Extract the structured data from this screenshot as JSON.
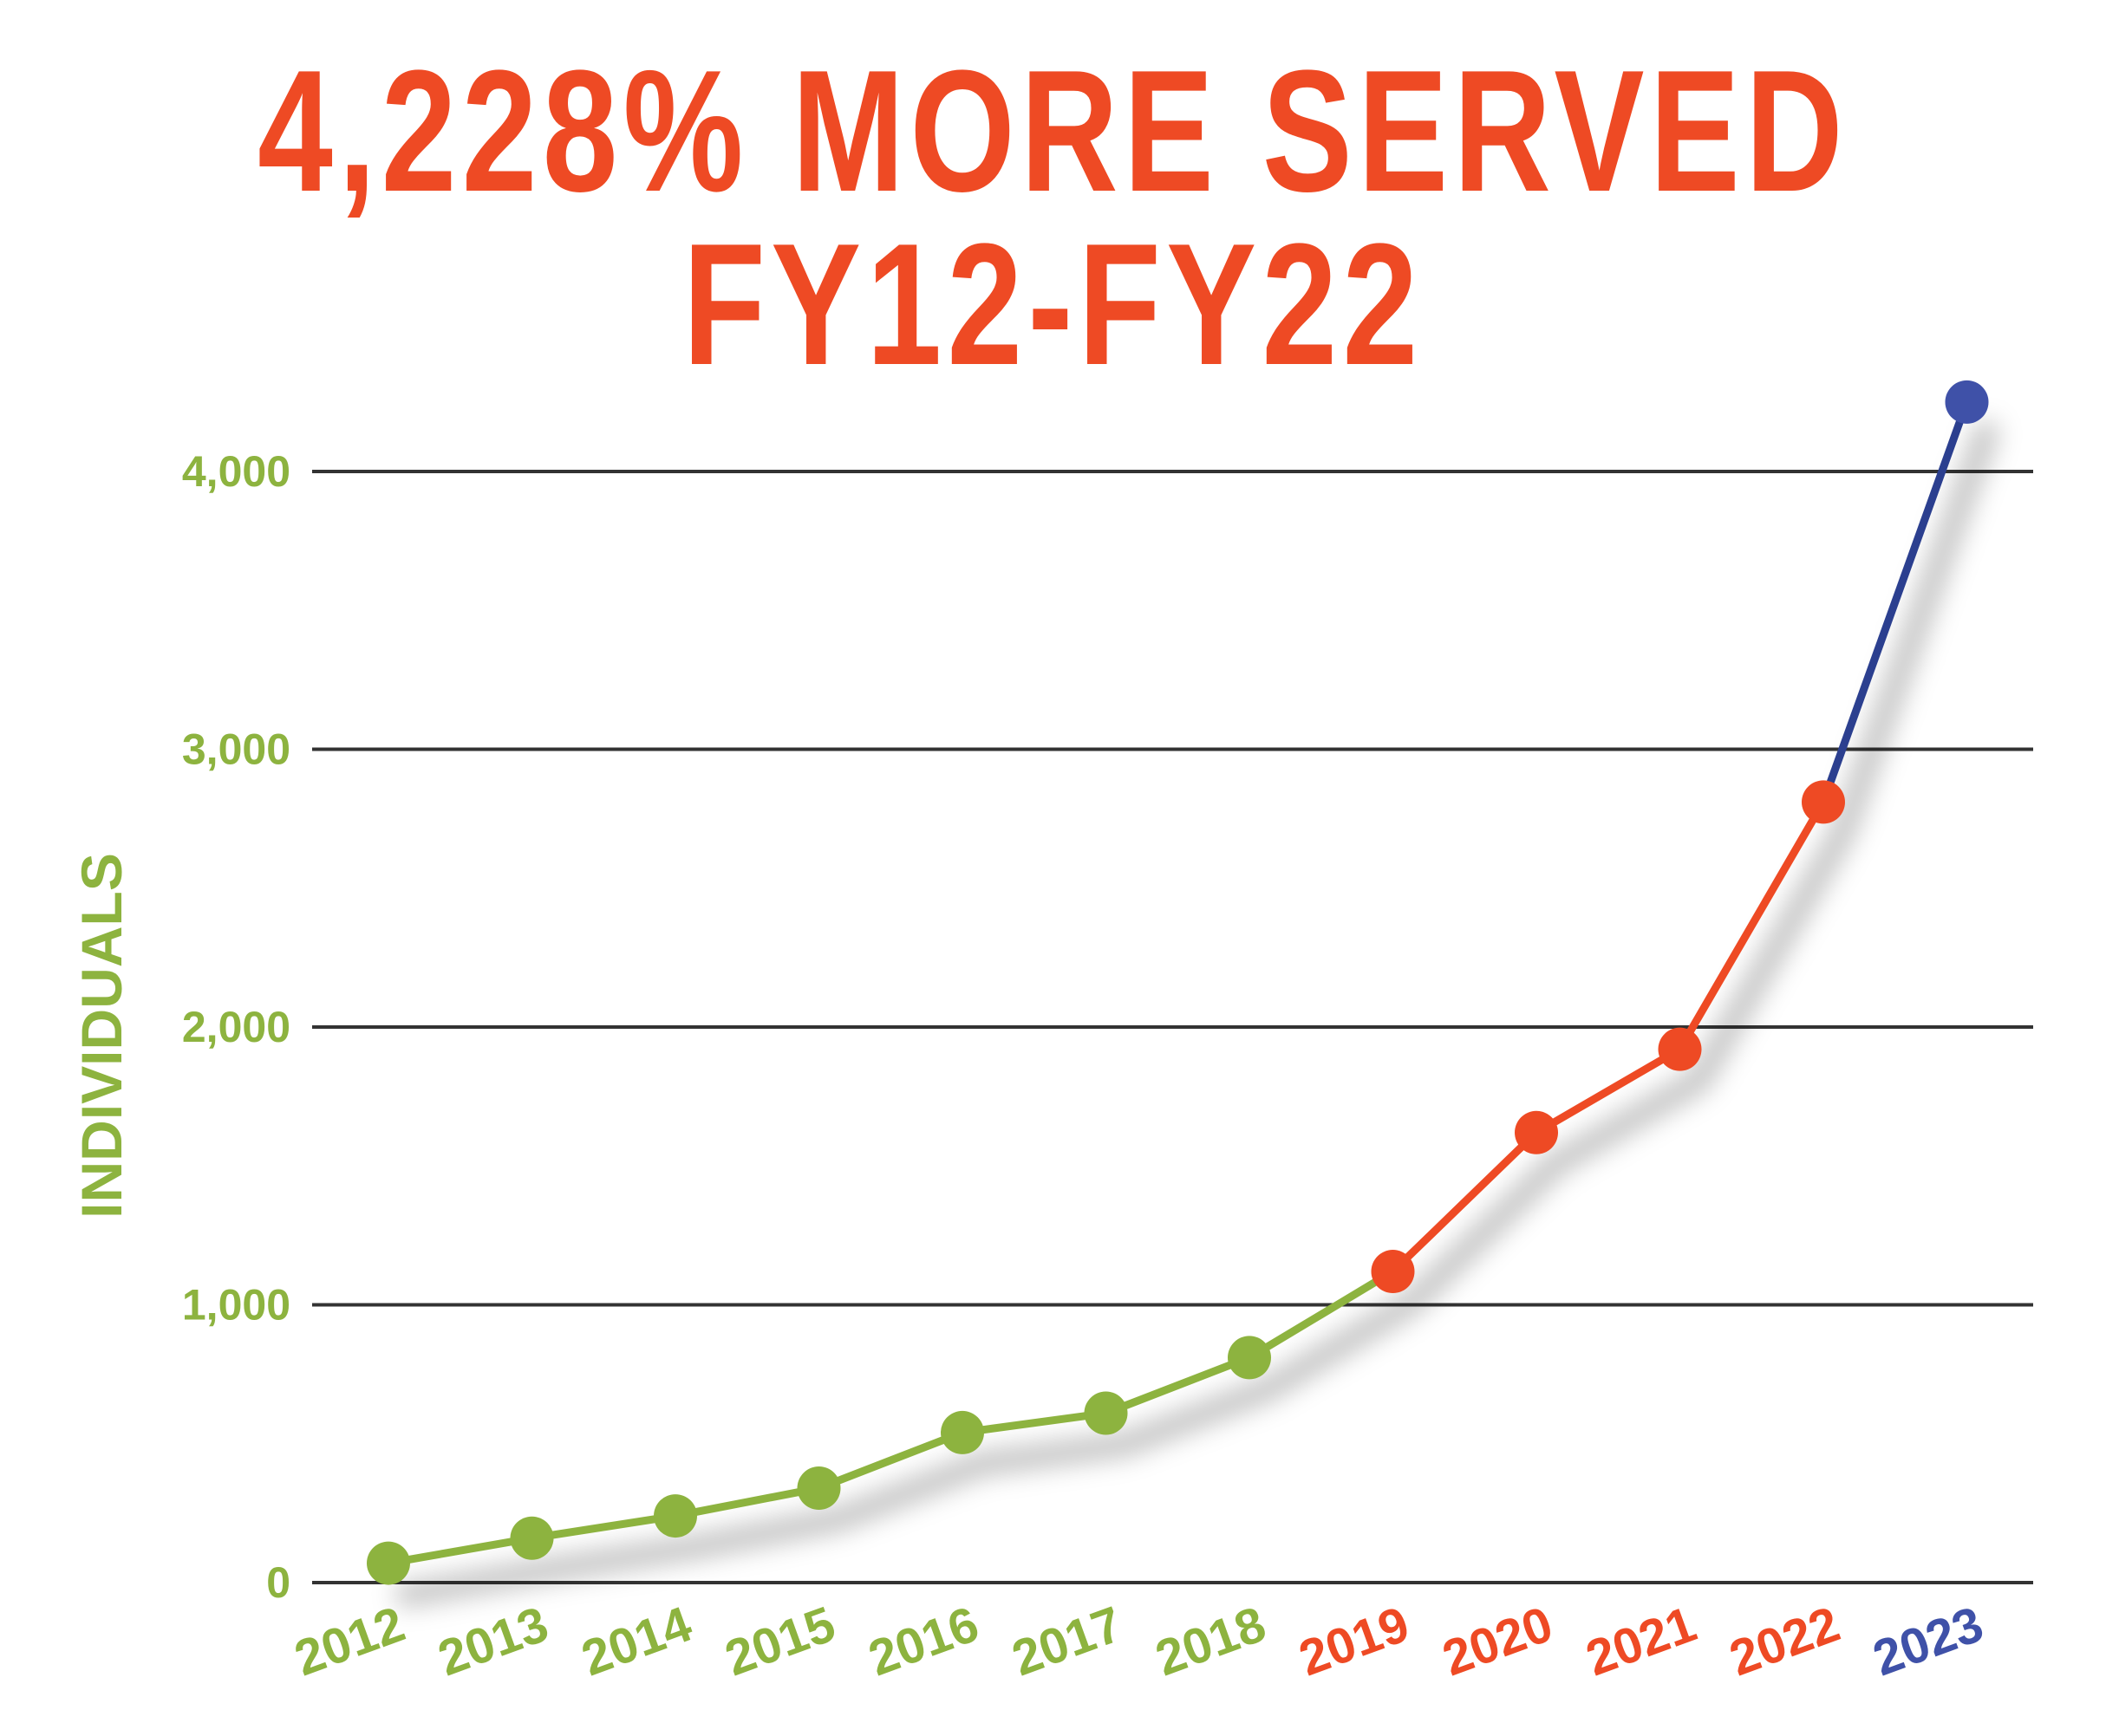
{
  "title_lines": [
    "4,228% MORE SERVED",
    "FY12-FY22"
  ],
  "colors": {
    "title": "#ee4a24",
    "green": "#8db33f",
    "red": "#ee4a24",
    "blue": "#3f51a8",
    "grid": "#333333"
  },
  "chart_data": {
    "type": "line",
    "title": "4,228% MORE SERVED FY12-FY22",
    "ylabel": "INDIVIDUALS",
    "xlabel": "",
    "ylim": [
      0,
      4000
    ],
    "yticks": [
      0,
      1000,
      2000,
      3000,
      4000
    ],
    "ytick_labels": [
      "0",
      "1,000",
      "2,000",
      "3,000",
      "4,000"
    ],
    "grid": true,
    "categories": [
      "2012",
      "2013",
      "2014",
      "2015",
      "2016",
      "2017",
      "2018",
      "2019",
      "2020",
      "2021",
      "2022",
      "2023"
    ],
    "values": [
      70,
      160,
      240,
      340,
      540,
      610,
      810,
      1120,
      1620,
      1920,
      2810,
      4250
    ],
    "point_colors": [
      "#8db33f",
      "#8db33f",
      "#8db33f",
      "#8db33f",
      "#8db33f",
      "#8db33f",
      "#8db33f",
      "#ee4a24",
      "#ee4a24",
      "#ee4a24",
      "#ee4a24",
      "#3f51a8"
    ],
    "label_colors": [
      "#8db33f",
      "#8db33f",
      "#8db33f",
      "#8db33f",
      "#8db33f",
      "#8db33f",
      "#8db33f",
      "#ee4a24",
      "#ee4a24",
      "#ee4a24",
      "#ee4a24",
      "#3f51a8"
    ]
  }
}
